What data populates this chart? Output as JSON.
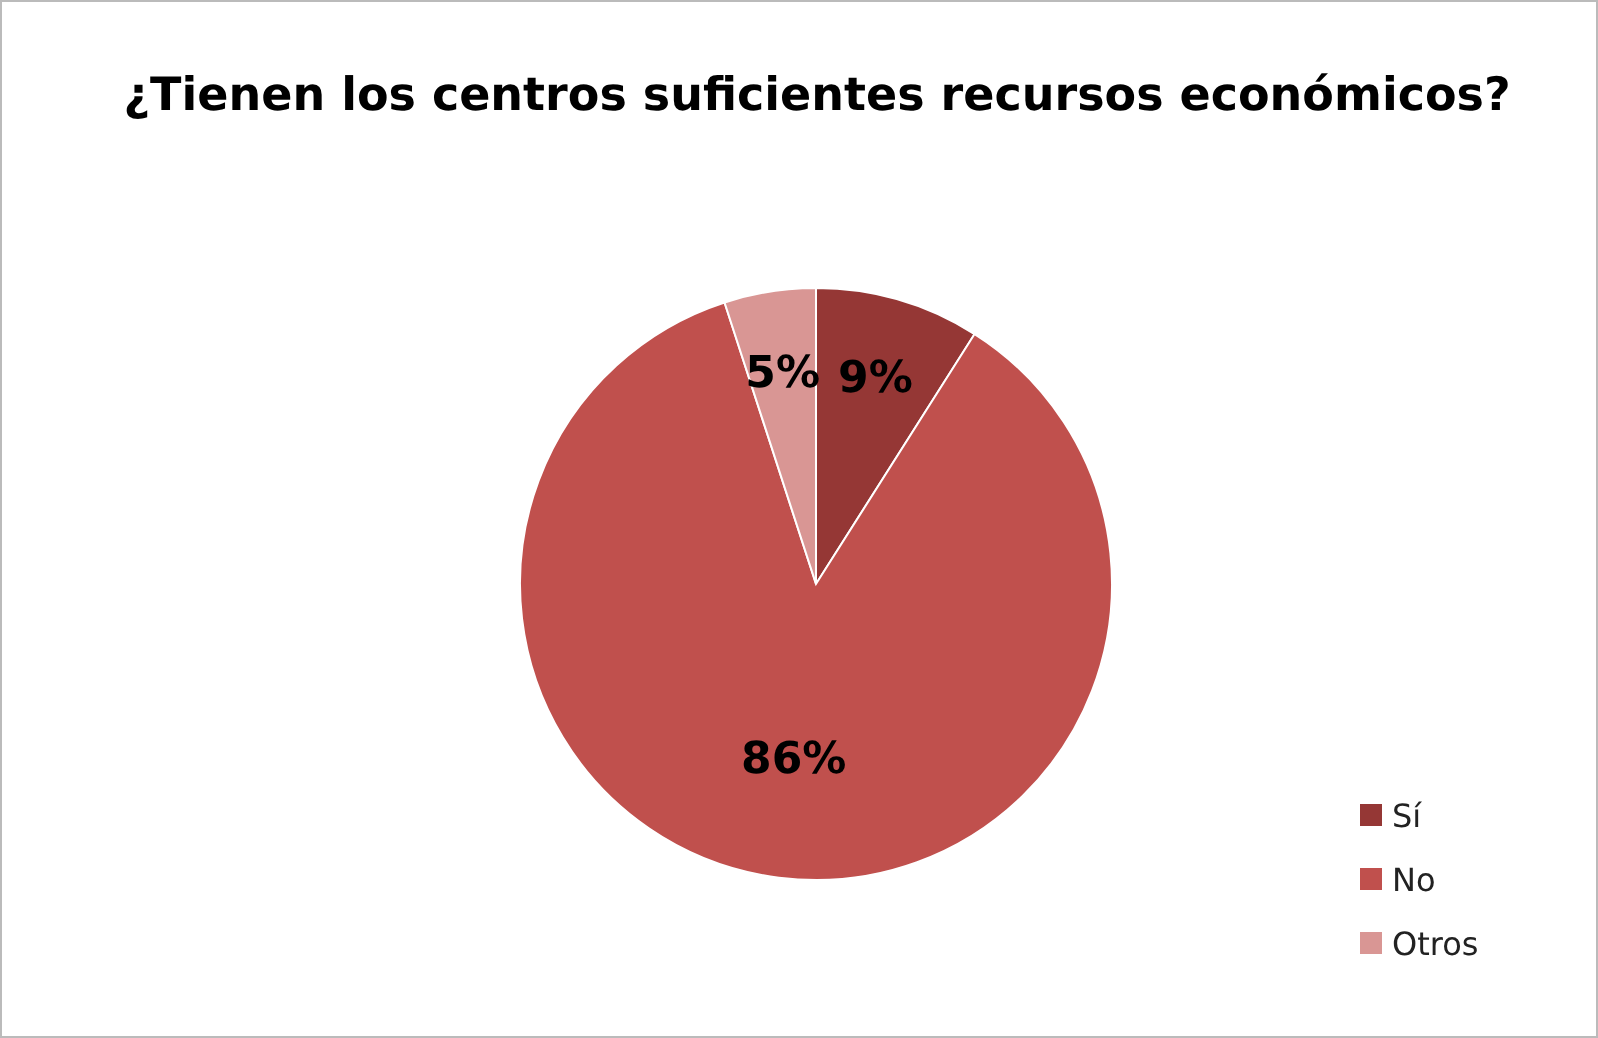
{
  "chart_data": {
    "type": "pie",
    "title": "¿Tienen los centros suficientes recursos económicos?",
    "categories": [
      "Sí",
      "No",
      "Otros"
    ],
    "values": [
      9,
      86,
      5
    ],
    "colors": [
      "#953735",
      "#c0504d",
      "#d99694"
    ],
    "value_labels": [
      "9%",
      "86%",
      "5%"
    ],
    "legend": "right"
  }
}
